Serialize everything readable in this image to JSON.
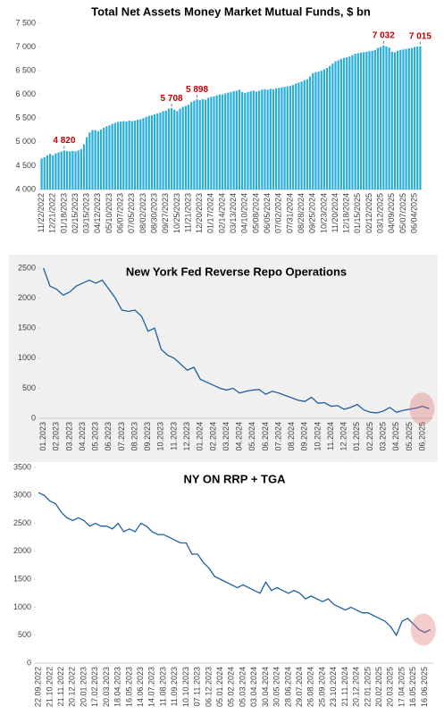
{
  "chart_data": [
    {
      "type": "bar",
      "title": "Total Net Assets Money Market Mutual Funds, $ bn",
      "color": "#29aedb",
      "label_color": "#c00000",
      "categories": [
        "11/22/2022",
        null,
        null,
        null,
        "12/21/2022",
        null,
        null,
        null,
        "01/18/2023",
        null,
        null,
        null,
        "02/15/2023",
        null,
        null,
        null,
        "03/15/2023",
        null,
        null,
        null,
        "04/12/2023",
        null,
        null,
        null,
        "05/10/2023",
        null,
        null,
        null,
        "06/07/2023",
        null,
        null,
        null,
        "07/05/2023",
        null,
        null,
        null,
        "08/02/2023",
        null,
        null,
        null,
        "08/30/2023",
        null,
        null,
        null,
        "09/27/2023",
        null,
        null,
        null,
        "10/25/2023",
        null,
        null,
        null,
        "11/21/2023",
        null,
        null,
        null,
        "12/20/2023",
        null,
        null,
        null,
        "01/17/2024",
        null,
        null,
        null,
        "02/14/2024",
        null,
        null,
        null,
        "03/13/2024",
        null,
        null,
        null,
        "04/10/2024",
        null,
        null,
        null,
        "05/08/2024",
        null,
        null,
        null,
        "06/05/2024",
        null,
        null,
        null,
        "07/02/2024",
        null,
        null,
        null,
        "07/31/2024",
        null,
        null,
        null,
        "08/28/2024",
        null,
        null,
        null,
        "09/25/2024",
        null,
        null,
        null,
        "10/23/2024",
        null,
        null,
        null,
        "11/20/2024",
        null,
        null,
        null,
        "12/18/2024",
        null,
        null,
        null,
        "01/15/2025",
        null,
        null,
        null,
        "02/12/2025",
        null,
        null,
        null,
        "03/12/2025",
        null,
        null,
        null,
        "04/09/2025",
        null,
        null,
        null,
        "05/07/2025",
        null,
        null,
        null,
        "06/04/2025",
        null,
        null
      ],
      "values": [
        4650,
        4680,
        4720,
        4750,
        4720,
        4760,
        4780,
        4800,
        4820,
        4810,
        4800,
        4810,
        4800,
        4820,
        4850,
        4950,
        5100,
        5200,
        5250,
        5250,
        5230,
        5260,
        5300,
        5330,
        5350,
        5380,
        5400,
        5420,
        5430,
        5440,
        5430,
        5450,
        5440,
        5450,
        5470,
        5480,
        5500,
        5530,
        5550,
        5560,
        5580,
        5600,
        5620,
        5650,
        5660,
        5700,
        5708,
        5680,
        5650,
        5700,
        5740,
        5760,
        5780,
        5840,
        5870,
        5898,
        5880,
        5900,
        5890,
        5930,
        5950,
        5960,
        5980,
        6000,
        6000,
        6020,
        6040,
        6050,
        6070,
        6080,
        6100,
        6050,
        6030,
        6050,
        6070,
        6080,
        6060,
        6080,
        6100,
        6110,
        6100,
        6120,
        6110,
        6130,
        6140,
        6150,
        6160,
        6170,
        6180,
        6200,
        6230,
        6250,
        6270,
        6300,
        6320,
        6380,
        6450,
        6470,
        6480,
        6500,
        6530,
        6560,
        6600,
        6650,
        6700,
        6720,
        6750,
        6770,
        6780,
        6800,
        6830,
        6860,
        6870,
        6880,
        6890,
        6900,
        6910,
        6920,
        6940,
        6980,
        7000,
        7032,
        7010,
        6990,
        6900,
        6890,
        6920,
        6940,
        6950,
        6960,
        6970,
        6980,
        7000,
        7010,
        7015
      ],
      "value_labels": [
        null,
        null,
        null,
        null,
        null,
        null,
        null,
        null,
        "4 820",
        null,
        null,
        null,
        null,
        null,
        null,
        null,
        null,
        null,
        null,
        null,
        null,
        null,
        null,
        null,
        null,
        null,
        null,
        null,
        null,
        null,
        null,
        null,
        null,
        null,
        null,
        null,
        null,
        null,
        null,
        null,
        null,
        null,
        null,
        null,
        null,
        null,
        "5 708",
        null,
        null,
        null,
        null,
        null,
        null,
        null,
        null,
        "5 898",
        null,
        null,
        null,
        null,
        null,
        null,
        null,
        null,
        null,
        null,
        null,
        null,
        null,
        null,
        null,
        null,
        null,
        null,
        null,
        null,
        null,
        null,
        null,
        null,
        null,
        null,
        null,
        null,
        null,
        null,
        null,
        null,
        null,
        null,
        null,
        null,
        null,
        null,
        null,
        null,
        null,
        null,
        null,
        null,
        null,
        null,
        null,
        null,
        null,
        null,
        null,
        null,
        null,
        null,
        null,
        null,
        null,
        null,
        null,
        null,
        null,
        null,
        null,
        null,
        null,
        "7 032",
        null,
        null,
        null,
        null,
        null,
        null,
        null,
        null,
        null,
        null,
        null,
        null,
        "7 015"
      ],
      "ylim": [
        4000,
        7500
      ],
      "yticks": [
        {
          "value": 4000,
          "label": "4 000"
        },
        {
          "value": 4500,
          "label": "4 500"
        },
        {
          "value": 5000,
          "label": "5 000"
        },
        {
          "value": 5500,
          "label": "5 500"
        },
        {
          "value": 6000,
          "label": "6 000"
        },
        {
          "value": 6500,
          "label": "6 500"
        },
        {
          "value": 7000,
          "label": "7 000"
        },
        {
          "value": 7500,
          "label": "7 500"
        }
      ],
      "grid": false
    },
    {
      "type": "line",
      "title": "New York Fed Reverse Repo Operations",
      "color": "#1f5f9e",
      "background": "#f0f0f0",
      "categories": [
        "01.2023",
        null,
        "02.2023",
        null,
        "03.2023",
        null,
        "04.2023",
        null,
        "05.2023",
        null,
        "06.2023",
        null,
        "07.2023",
        null,
        "08.2023",
        null,
        "09.2023",
        null,
        "10.2023",
        null,
        "11.2023",
        null,
        "12.2023",
        null,
        "01.2024",
        null,
        "02.2024",
        null,
        "03.2024",
        null,
        "04.2024",
        null,
        "05.2024",
        null,
        "06.2024",
        null,
        "07.2024",
        null,
        "08.2024",
        null,
        "09.2024",
        null,
        "10.2024",
        null,
        "11.2024",
        null,
        "12.2024",
        null,
        "01.2025",
        null,
        "02.2025",
        null,
        "03.2025",
        null,
        "04.2025",
        null,
        "05.2025",
        null,
        "06.2025",
        null
      ],
      "values": [
        2500,
        2200,
        2150,
        2050,
        2100,
        2200,
        2250,
        2300,
        2250,
        2300,
        2150,
        2000,
        1800,
        1780,
        1800,
        1700,
        1450,
        1500,
        1150,
        1050,
        1000,
        900,
        800,
        850,
        650,
        600,
        550,
        500,
        470,
        500,
        420,
        450,
        470,
        480,
        400,
        450,
        420,
        380,
        340,
        300,
        280,
        350,
        250,
        260,
        200,
        210,
        150,
        180,
        230,
        140,
        100,
        90,
        120,
        180,
        100,
        130,
        150,
        170,
        200,
        160
      ],
      "ylim": [
        0,
        2500
      ],
      "yticks": [
        0,
        500,
        1000,
        1500,
        2000,
        2500
      ],
      "grid": false
    },
    {
      "type": "line",
      "title": "NY ON RRP + TGA",
      "color": "#1f5f9e",
      "categories": [
        "22.09.2022",
        null,
        "21.10.2022",
        null,
        "21.11.2022",
        null,
        "20.12.2022",
        null,
        "20.01.2023",
        null,
        "17.02.2023",
        null,
        "20.03.2023",
        null,
        "18.04.2023",
        null,
        "16.05.2023",
        null,
        "14.06.2023",
        null,
        "14.07.2023",
        null,
        "11.08.2023",
        null,
        "11.09.2023",
        null,
        "10.10.2023",
        null,
        "07.11.2023",
        null,
        "06.12.2023",
        null,
        "05.01.2024",
        null,
        "05.02.2024",
        null,
        "05.03.2024",
        null,
        "03.04.2024",
        null,
        "30.04.2024",
        null,
        "30.05.2024",
        null,
        "28.06.2024",
        null,
        "29.07.2024",
        null,
        "26.08.2024",
        null,
        "25.09.2024",
        null,
        "23.10.2024",
        null,
        "21.11.2024",
        null,
        "20.12.2024",
        null,
        "22.01.2025",
        null,
        "20.02.2025",
        null,
        "20.03.2025",
        null,
        "17.04.2025",
        null,
        "16.05.2025",
        null,
        "16.06.2025",
        null
      ],
      "values": [
        3050,
        3000,
        2900,
        2850,
        2700,
        2600,
        2550,
        2600,
        2550,
        2450,
        2500,
        2450,
        2450,
        2400,
        2500,
        2350,
        2400,
        2350,
        2500,
        2450,
        2350,
        2300,
        2300,
        2250,
        2200,
        2150,
        2150,
        1950,
        1950,
        1800,
        1700,
        1550,
        1500,
        1450,
        1400,
        1350,
        1400,
        1350,
        1300,
        1250,
        1450,
        1300,
        1350,
        1300,
        1250,
        1300,
        1250,
        1150,
        1200,
        1150,
        1100,
        1150,
        1050,
        1000,
        950,
        1000,
        950,
        900,
        900,
        850,
        800,
        750,
        650,
        500,
        750,
        800,
        700,
        600,
        550,
        600
      ],
      "ylim": [
        0,
        3500
      ],
      "yticks": [
        0,
        500,
        1000,
        1500,
        2000,
        2500,
        3000,
        3500
      ],
      "grid": false
    }
  ]
}
